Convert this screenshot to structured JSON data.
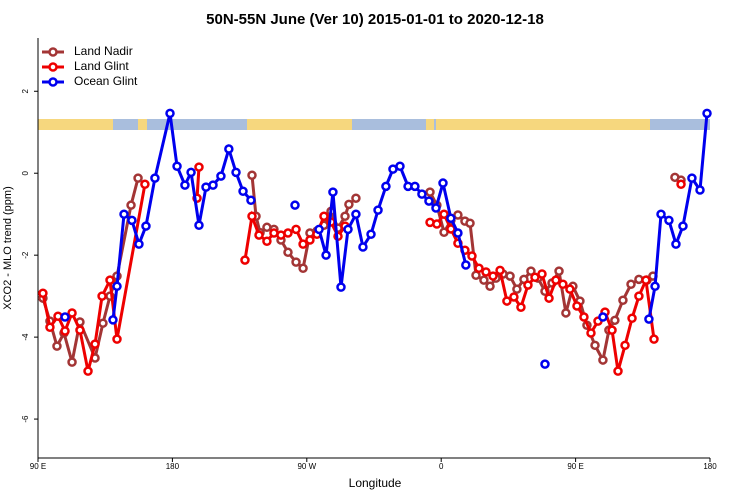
{
  "chart_data": {
    "type": "line",
    "title": "50N-55N June (Ver 10)   2015-01-01 to 2020-12-18",
    "x_label": "Longitude",
    "y_label": "XCO2 - MLO trend (ppm)",
    "xlim": [
      -270,
      180
    ],
    "xticks": [
      {
        "value": -270,
        "label": "90 E"
      },
      {
        "value": -180,
        "label": "180"
      },
      {
        "value": -90,
        "label": "90 W"
      },
      0,
      {
        "value": 90,
        "label": "90 E"
      },
      180
    ],
    "ylim": [
      -6.95,
      3.3
    ],
    "yticks": [
      2,
      0,
      -2,
      -4,
      -6
    ],
    "legend": "top-left",
    "series": [
      {
        "name": "Land Nadir",
        "color": "#a33535",
        "x": [
          -266.7,
          -262,
          -257.3,
          -252.6,
          -247.2,
          -241.9,
          -231.8,
          -226.5,
          -221.8,
          -217.1,
          -207.7,
          -203,
          null,
          -126.7,
          -124,
          -121.3,
          -116.7,
          -112,
          -107.3,
          -102.6,
          -97.2,
          -92.5,
          -87.9,
          -83.2,
          -78.5,
          -73.8,
          -69.1,
          -64.4,
          -61.8,
          -57.1,
          null,
          -7.5,
          -2.9,
          1.9,
          6.5,
          11.2,
          15.9,
          19.3,
          23.3,
          28.6,
          32.7,
          36.7,
          41.4,
          46.1,
          50.7,
          55.4,
          60.1,
          64.8,
          69.5,
          74.2,
          78.9,
          83.5,
          88.2,
          92.9,
          97.6,
          103,
          108.3,
          112.3,
          116.3,
          121.7,
          127.1,
          132.4,
          137.8,
          141.8,
          null,
          156.5,
          160.6
        ],
        "values": [
          -3.05,
          -3.61,
          -4.22,
          -3.9,
          -4.61,
          -3.63,
          -4.51,
          -3.66,
          -3.0,
          -2.51,
          -0.78,
          -0.12,
          null,
          -0.05,
          -1.05,
          -1.45,
          -1.32,
          -1.37,
          -1.63,
          -1.93,
          -2.17,
          -2.32,
          -1.46,
          -1.41,
          -1.27,
          -0.93,
          -1.34,
          -1.05,
          -0.76,
          -0.61,
          null,
          -0.46,
          -0.78,
          -1.44,
          -1.15,
          -1.02,
          -1.17,
          -1.22,
          -2.49,
          -2.61,
          -2.76,
          -2.56,
          -2.46,
          -2.51,
          -2.83,
          -2.59,
          -2.39,
          -2.56,
          -2.88,
          -2.68,
          -2.39,
          -3.41,
          -2.76,
          -3.12,
          -3.71,
          -4.2,
          -4.56,
          -3.83,
          -3.59,
          -3.1,
          -2.71,
          -2.59,
          -2.61,
          -2.51,
          null,
          -0.1,
          -0.17
        ]
      },
      {
        "name": "Land Glint",
        "color": "#ee0000",
        "x": [
          -266.7,
          -262,
          -256.6,
          -251.9,
          -247.2,
          -241.9,
          -236.5,
          -231.8,
          -227.1,
          -221.8,
          -217.1,
          -198.4,
          null,
          -163.5,
          -162.2,
          null,
          -131.4,
          -126.7,
          -122,
          -116.7,
          -112,
          -107.3,
          -102.6,
          -97.2,
          -92.5,
          -87.9,
          -83.2,
          -78.5,
          -73.8,
          -69.1,
          -64.4,
          null,
          -7.5,
          -2.9,
          1.9,
          6.5,
          11.2,
          15.9,
          20.6,
          25.3,
          30,
          34.7,
          39.4,
          44,
          48.7,
          53.4,
          58.1,
          62.8,
          67.5,
          72.2,
          76.8,
          81.5,
          86.2,
          90.9,
          95.6,
          100.3,
          105,
          109.7,
          114.4,
          118.4,
          123.1,
          127.8,
          132.4,
          137.1,
          142.5,
          null,
          160.6
        ],
        "values": [
          -2.93,
          -3.76,
          -3.49,
          -3.85,
          -3.41,
          -3.83,
          -4.83,
          -4.17,
          -3.0,
          -2.61,
          -4.05,
          -0.27,
          null,
          -0.61,
          0.15,
          null,
          -2.12,
          -1.05,
          -1.51,
          -1.66,
          -1.46,
          -1.51,
          -1.46,
          -1.37,
          -1.73,
          -1.63,
          -1.49,
          -1.05,
          -1.19,
          -1.54,
          -1.29,
          null,
          -1.2,
          -1.24,
          -1.0,
          -1.36,
          -1.71,
          -1.88,
          -2.02,
          -2.32,
          -2.41,
          -2.51,
          -2.37,
          -3.12,
          -3.02,
          -3.27,
          -2.73,
          -2.54,
          -2.46,
          -3.05,
          -2.61,
          -2.71,
          -2.83,
          -3.24,
          -3.51,
          -3.9,
          -3.61,
          -3.39,
          -3.83,
          -4.83,
          -4.2,
          -3.54,
          -3.0,
          -2.61,
          -4.05,
          null,
          -0.27
        ]
      },
      {
        "name": "Ocean Glint",
        "color": "#0000ee",
        "x": [
          -251.9,
          null,
          -219.8,
          -217.1,
          -212.4,
          -207.1,
          -202.4,
          -197.7,
          -191.7,
          -181.6,
          -176.9,
          -171.6,
          -167.5,
          -162.2,
          -157.5,
          -152.8,
          -147.5,
          -142.2,
          -137.4,
          -132.7,
          -127.4,
          null,
          -97.9,
          null,
          -81.8,
          -77.1,
          -72.5,
          -67.1,
          -62.4,
          -57.1,
          -52.4,
          -47,
          -42.3,
          -37,
          -32.3,
          -27.6,
          -22.2,
          -17.6,
          -12.9,
          -8.2,
          -3.5,
          1.2,
          6.5,
          11.2,
          16.5,
          null,
          69.5,
          null,
          108.3,
          null,
          139.1,
          143.2,
          147.2,
          152.5,
          157.2,
          161.9,
          167.9,
          173.3,
          178
        ],
        "values": [
          -3.51,
          null,
          -3.58,
          -2.76,
          -1.0,
          -1.15,
          -1.73,
          -1.29,
          -0.12,
          1.46,
          0.17,
          -0.29,
          0.02,
          -1.27,
          -0.34,
          -0.29,
          -0.07,
          0.59,
          0.02,
          -0.44,
          -0.66,
          null,
          -0.78,
          null,
          -1.37,
          -2.0,
          -0.46,
          -2.78,
          -1.37,
          -1.0,
          -1.8,
          -1.49,
          -0.9,
          -0.32,
          0.1,
          0.17,
          -0.32,
          -0.32,
          -0.51,
          -0.68,
          -0.85,
          -0.24,
          -1.1,
          -1.46,
          -2.24,
          null,
          -4.66,
          null,
          -3.51,
          null,
          -3.56,
          -2.76,
          -1.0,
          -1.15,
          -1.73,
          -1.29,
          -0.12,
          -0.41,
          1.46
        ]
      }
    ]
  }
}
